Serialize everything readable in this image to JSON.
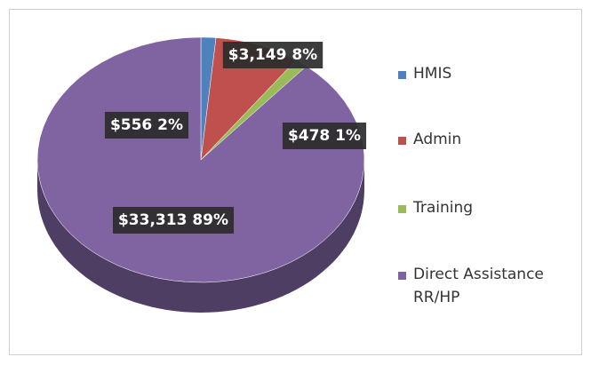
{
  "chart_data": {
    "type": "pie",
    "categories": [
      "HMIS",
      "Admin",
      "Training",
      "Direct Assistance RR/HP"
    ],
    "values": [
      556,
      3149,
      478,
      33313
    ],
    "value_labels": [
      "$556 2%",
      "$3,149 8%",
      "$478 1%",
      "$33,313 89%"
    ],
    "colors": [
      "#4f81bd",
      "#c0504d",
      "#9bbb59",
      "#8064a2"
    ],
    "legend": "right"
  }
}
